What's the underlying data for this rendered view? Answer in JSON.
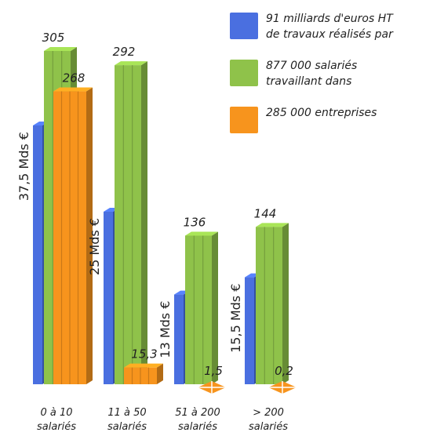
{
  "chart_data": {
    "type": "bar",
    "categories": [
      [
        "0 à 10",
        "salariés"
      ],
      [
        "11 à 50",
        "salariés"
      ],
      [
        "51 à 200",
        "salariés"
      ],
      [
        "> 200",
        "salariés"
      ]
    ],
    "series": [
      {
        "name": "91 milliards d'euros HT de travaux réalisés par",
        "name_lines": [
          "91 milliards d'euros HT",
          "de travaux réalisés par"
        ],
        "color": "#4a6fe0",
        "values": [
          37.5,
          25,
          13,
          15.5
        ],
        "labels": [
          "37,5 Mds €",
          "25 Mds €",
          "13 Mds €",
          "15,5 Mds €"
        ]
      },
      {
        "name": "877 000 salariés travaillant dans",
        "name_lines": [
          "877 000 salariés",
          "travaillant dans"
        ],
        "color": "#8fc24a",
        "values": [
          305,
          292,
          136,
          144
        ],
        "labels": [
          "305",
          "292",
          "136",
          "144"
        ]
      },
      {
        "name": "285 000 entreprises",
        "name_lines": [
          "285 000 entreprises"
        ],
        "color": "#f7941d",
        "values": [
          268,
          15.3,
          1.5,
          0.2
        ],
        "labels": [
          "268",
          "15,3",
          "1,5",
          "0,2"
        ]
      }
    ],
    "legend": "top-right",
    "grid": false
  }
}
